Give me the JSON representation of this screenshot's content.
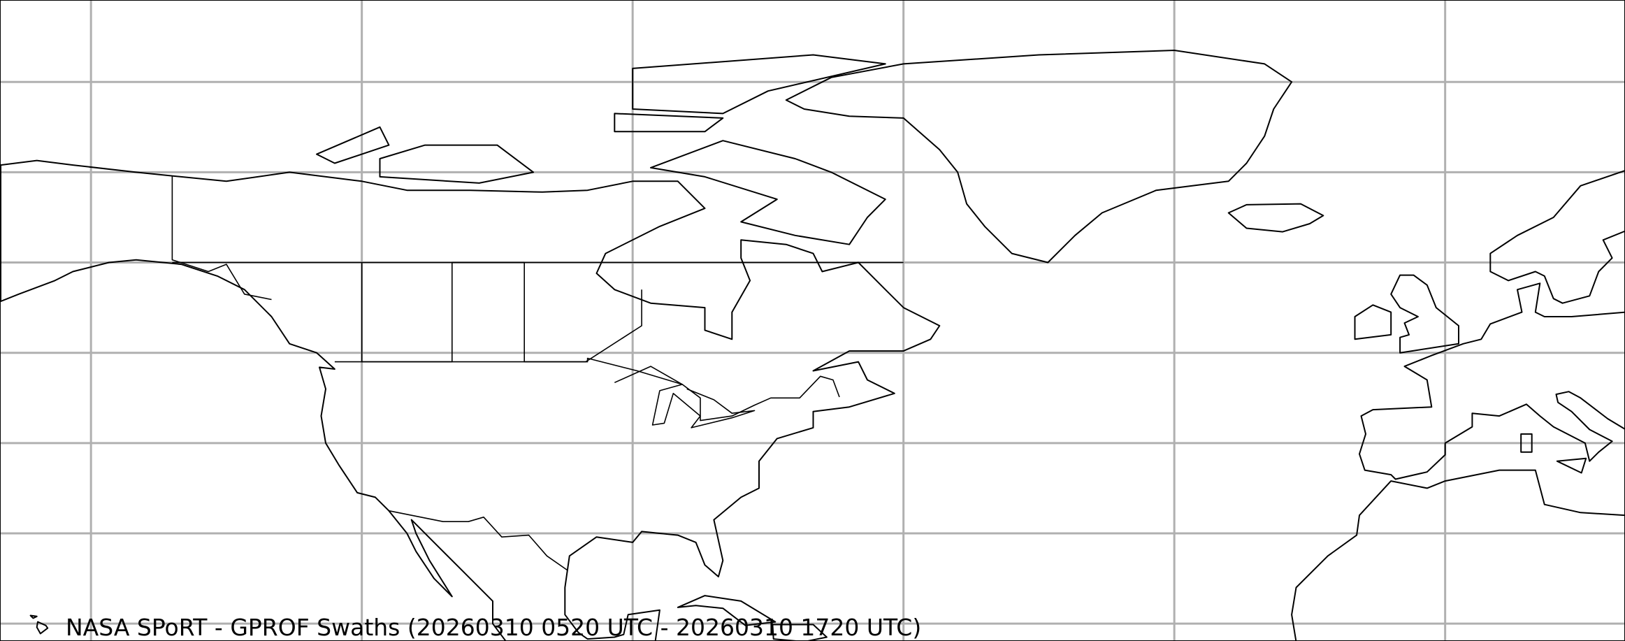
{
  "title": "NASA SPoRT - GPROF Swaths (20260310 0520 UTC - 20260310 1720 UTC)",
  "map": {
    "projection": "plate carree",
    "extent_lon": [
      -160,
      20
    ],
    "extent_lat": [
      18,
      89
    ],
    "gridlines": {
      "lons": [
        -150,
        -120,
        -90,
        -60,
        -30,
        0
      ],
      "lats": [
        20,
        30,
        40,
        50,
        60,
        70,
        80
      ]
    },
    "colors": {
      "background": "#ffffff",
      "coastline": "#000000",
      "gridline": "#b0b0b0"
    }
  }
}
